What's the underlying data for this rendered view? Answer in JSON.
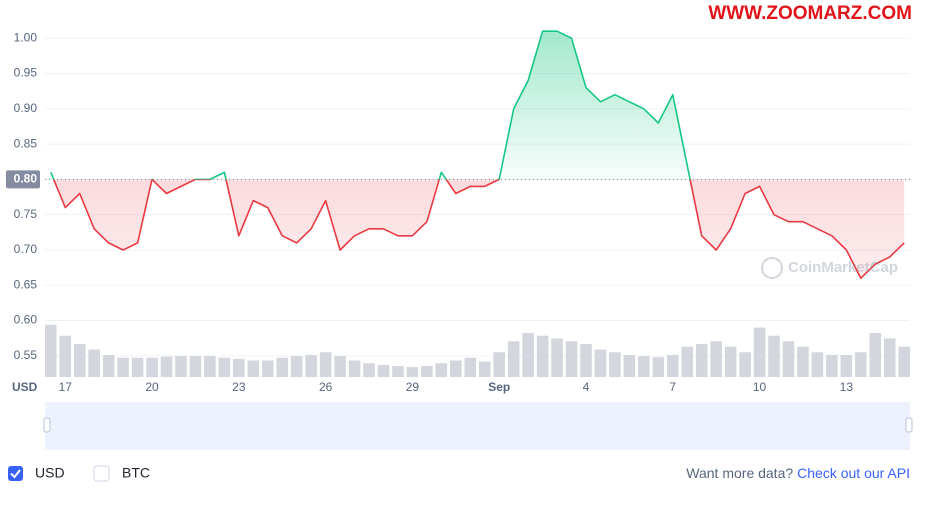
{
  "chart_data": {
    "type": "line",
    "categories": [
      null,
      "17",
      null,
      null,
      null,
      null,
      null,
      "20",
      null,
      null,
      null,
      null,
      null,
      "23",
      null,
      null,
      null,
      null,
      null,
      "26",
      null,
      null,
      null,
      null,
      null,
      "29",
      null,
      null,
      null,
      null,
      null,
      "Sep",
      null,
      null,
      null,
      null,
      null,
      "4",
      null,
      null,
      null,
      null,
      null,
      "7",
      null,
      null,
      null,
      null,
      null,
      "10",
      null,
      null,
      null,
      null,
      null,
      "13",
      null,
      null,
      null,
      null
    ],
    "series": [
      {
        "name": "USD",
        "color_up": "#16c784",
        "color_down": "#ea3943",
        "values": [
          0.81,
          0.76,
          0.78,
          0.73,
          0.71,
          0.7,
          0.71,
          0.8,
          0.78,
          0.79,
          0.8,
          0.8,
          0.81,
          0.72,
          0.77,
          0.76,
          0.72,
          0.71,
          0.73,
          0.77,
          0.7,
          0.72,
          0.73,
          0.73,
          0.72,
          0.72,
          0.74,
          0.81,
          0.78,
          0.79,
          0.79,
          0.8,
          0.9,
          0.94,
          1.01,
          1.01,
          1.0,
          0.93,
          0.91,
          0.92,
          0.91,
          0.9,
          0.88,
          0.92,
          0.82,
          0.72,
          0.7,
          0.73,
          0.78,
          0.79,
          0.75,
          0.74,
          0.74,
          0.73,
          0.72,
          0.7,
          0.66,
          0.68,
          0.69,
          0.71
        ]
      }
    ],
    "volume": {
      "color": "#d3d6dc",
      "ylim": [
        0,
        100
      ],
      "values": [
        95,
        75,
        60,
        50,
        40,
        35,
        35,
        35,
        37,
        38,
        38,
        38,
        35,
        33,
        30,
        30,
        35,
        38,
        40,
        45,
        38,
        30,
        25,
        22,
        20,
        18,
        20,
        25,
        30,
        35,
        28,
        45,
        65,
        80,
        75,
        70,
        65,
        60,
        50,
        45,
        40,
        38,
        36,
        40,
        55,
        60,
        65,
        55,
        45,
        90,
        75,
        65,
        55,
        45,
        40,
        40,
        45,
        80,
        70,
        55
      ]
    },
    "baseline": {
      "value": 0.8,
      "label": "0.80"
    },
    "ylim": [
      0.52,
      1.04
    ],
    "yticks": [
      {
        "value": 1.0,
        "label": "1.00"
      },
      0.95,
      {
        "value": 0.9,
        "label": "0.90"
      },
      0.85,
      {
        "value": 0.8,
        "label": "0.80"
      },
      0.75,
      {
        "value": 0.7,
        "label": "0.70"
      },
      0.65,
      {
        "value": 0.6,
        "label": "0.60"
      },
      0.55
    ],
    "grid": true,
    "currency_label": "USD",
    "navigator_color": "#4b76e0"
  },
  "watermark": "WWW.ZOOMARZ.COM",
  "brand": "CoinMarketCap",
  "toggles": [
    {
      "label": "USD",
      "checked": true
    },
    {
      "label": "BTC",
      "checked": false
    }
  ],
  "footer": {
    "prompt": "Want more data?",
    "link": "Check out our API"
  }
}
